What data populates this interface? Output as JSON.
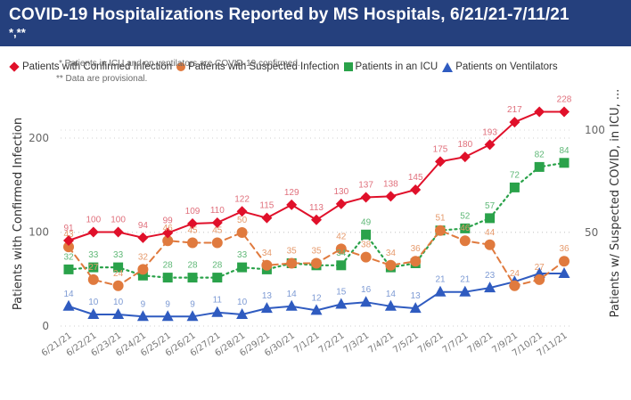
{
  "header": {
    "title": "COVID-19 Hospitalizations Reported by MS Hospitals, 6/21/21-7/11/21",
    "subtitle": "*,**"
  },
  "notes": {
    "note1": "* Patients in ICU and on ventilators are COVID-19 confirmed.",
    "note2": "** Data are provisional."
  },
  "colors": {
    "header_bg": "#25407d",
    "confirmed": "#e0102a",
    "suspected": "#e07a3e",
    "icu": "#2aa24a",
    "ventilators": "#2f5bc0",
    "confirmed_label": "#e0707c",
    "suspected_label": "#e69a6c",
    "icu_label": "#5fb877",
    "ventilators_label": "#7e9bd4"
  },
  "chart_data": {
    "type": "line",
    "title": "COVID-19 Hospitalizations Reported by MS Hospitals, 6/21/21-7/11/21",
    "xlabel": "",
    "ylabel": "Patients with Confirmed Infection",
    "ylabel_right": "Patients w/ Suspected COVID, in ICU, ...",
    "ylim": [
      0,
      200
    ],
    "yticks": [
      "0",
      "100",
      "200"
    ],
    "ylim_right": [
      0,
      100
    ],
    "yticks_right": [
      "50",
      "100"
    ],
    "grid": true,
    "legend_position": "top-left",
    "x": [
      "6/21/21",
      "6/22/21",
      "6/23/21",
      "6/24/21",
      "6/25/21",
      "6/26/21",
      "6/27/21",
      "6/28/21",
      "6/29/21",
      "6/30/21",
      "7/1/21",
      "7/2/21",
      "7/3/21",
      "7/4/21",
      "7/5/21",
      "7/6/21",
      "7/7/21",
      "7/8/21",
      "7/9/21",
      "7/10/21",
      "7/11/21"
    ],
    "series": [
      {
        "name": "Patients with Confirmed Infection",
        "axis": "left",
        "marker": "diamond",
        "line": "solid",
        "values": [
          91,
          100,
          100,
          94,
          99,
          109,
          110,
          122,
          115,
          129,
          113,
          130,
          137,
          138,
          145,
          175,
          180,
          193,
          217,
          228,
          228
        ],
        "labels": [
          "91",
          "100",
          "100",
          "94",
          "99",
          "109",
          "110",
          "122",
          "115",
          "129",
          "113",
          "130",
          "137",
          "138",
          "145",
          "175",
          "180",
          "193",
          "217",
          "",
          "228"
        ]
      },
      {
        "name": "Patients with Suspected Infection",
        "axis": "right",
        "marker": "circle",
        "line": "dashed",
        "values": [
          43,
          27,
          24,
          32,
          46,
          45,
          45,
          50,
          34,
          35,
          35,
          42,
          38,
          34,
          36,
          51,
          46,
          44,
          24,
          27,
          36
        ],
        "labels": [
          "43",
          "27",
          "24",
          "32",
          "46",
          "45",
          "45",
          "50",
          "34",
          "35",
          "35",
          "42",
          "38",
          "34",
          "36",
          "51",
          "46",
          "44",
          "24",
          "27",
          "36"
        ]
      },
      {
        "name": "Patients in an ICU",
        "axis": "right",
        "marker": "square",
        "line": "dotted",
        "values": [
          32,
          33,
          33,
          29,
          28,
          28,
          28,
          33,
          32,
          35,
          34,
          34,
          49,
          33,
          35,
          51,
          52,
          57,
          72,
          82,
          84
        ],
        "labels": [
          "32",
          "33",
          "33",
          "",
          "28",
          "28",
          "28",
          "33",
          "",
          "",
          "",
          "34",
          "49",
          "",
          "",
          "",
          "52",
          "57",
          "72",
          "82",
          "84"
        ]
      },
      {
        "name": "Patients on Ventilators",
        "axis": "right",
        "marker": "triangle",
        "line": "solid",
        "values": [
          14,
          10,
          10,
          9,
          9,
          9,
          11,
          10,
          13,
          14,
          12,
          15,
          16,
          14,
          13,
          21,
          21,
          23,
          26,
          30,
          30
        ],
        "labels": [
          "14",
          "10",
          "10",
          "9",
          "9",
          "9",
          "11",
          "10",
          "13",
          "14",
          "12",
          "15",
          "16",
          "14",
          "13",
          "21",
          "21",
          "23",
          "",
          "",
          ""
        ]
      }
    ]
  }
}
